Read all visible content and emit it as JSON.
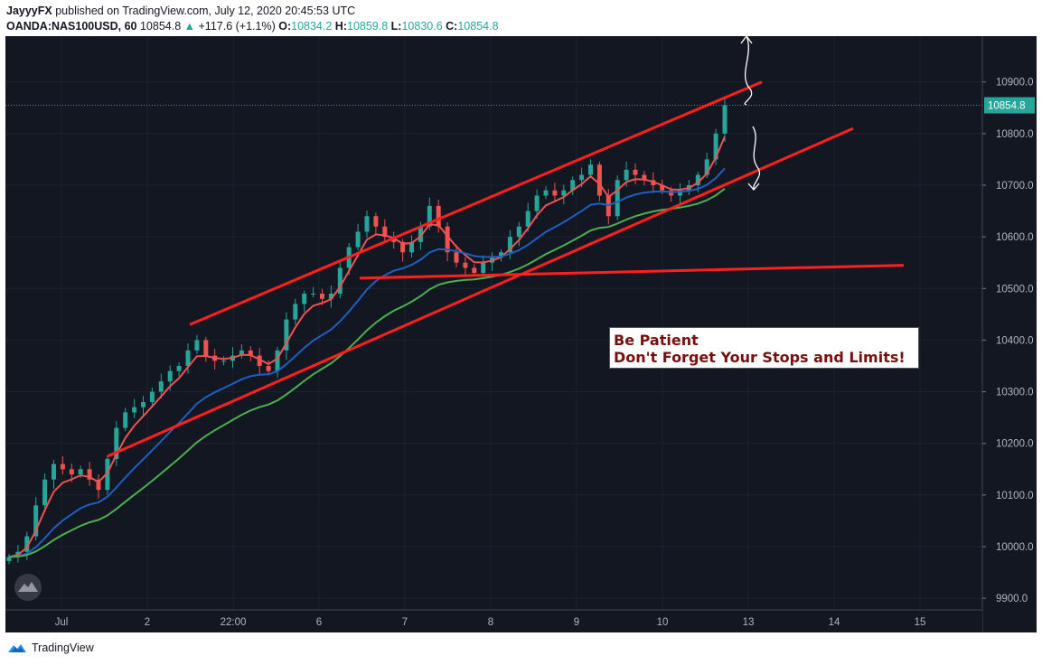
{
  "header": {
    "publisher": "JayyyFX",
    "published_text": " published on TradingView.com, July 12, 2020 20:45:53 UTC",
    "symbol": "OANDA:NAS100USD, 60",
    "last": "10854.8",
    "change_arrow": "▲",
    "change": "+117.6 (+1.1%)",
    "open_label": "O:",
    "open": "10834.2",
    "high_label": "H:",
    "high": "10859.8",
    "low_label": "L:",
    "low": "10830.6",
    "close_label": "C:",
    "close": "10854.8"
  },
  "footer": {
    "brand": "TradingView",
    "icon": "tradingview-logo-icon"
  },
  "annotation": {
    "line1": "Be Patient",
    "line2": "Don't Forget Your Stops and Limits!"
  },
  "colors": {
    "background": "#131722",
    "up_candle": "#26a69a",
    "down_candle": "#ef5350",
    "ma_fast": "#f05252",
    "ma_mid": "#1e5fc2",
    "ma_slow": "#4caf50",
    "trendline": "#ff1f1f",
    "price_badge": "#26a69a"
  },
  "chart_data": {
    "type": "candlestick",
    "symbol": "OANDA:NAS100USD",
    "timeframe": "60",
    "x_tick_labels": [
      "Jul",
      "2",
      "22:00",
      "6",
      "7",
      "8",
      "9",
      "10",
      "13",
      "14",
      "15"
    ],
    "y_tick_labels": [
      "9900.0",
      "10000.0",
      "10100.0",
      "10200.0",
      "10300.0",
      "10400.0",
      "10500.0",
      "10600.0",
      "10700.0",
      "10800.0",
      "10900.0"
    ],
    "ylim": [
      9860,
      10980
    ],
    "last_price": 10854.8,
    "grid": true,
    "close_series_approx": [
      9980,
      9990,
      10020,
      10080,
      10130,
      10160,
      10150,
      10140,
      10150,
      10130,
      10110,
      10170,
      10230,
      10260,
      10270,
      10280,
      10300,
      10320,
      10340,
      10350,
      10380,
      10400,
      10370,
      10360,
      10360,
      10370,
      10380,
      10370,
      10350,
      10340,
      10380,
      10440,
      10470,
      10490,
      10490,
      10480,
      10490,
      10540,
      10580,
      10610,
      10640,
      10620,
      10600,
      10590,
      10570,
      10590,
      10620,
      10660,
      10620,
      10570,
      10550,
      10540,
      10530,
      10550,
      10560,
      10570,
      10600,
      10620,
      10650,
      10680,
      10690,
      10680,
      10690,
      10710,
      10720,
      10740,
      10680,
      10640,
      10710,
      10730,
      10720,
      10710,
      10700,
      10690,
      10680,
      10690,
      10700,
      10720,
      10750,
      10800,
      10855
    ],
    "moving_averages": [
      {
        "color": "red",
        "period_label": ""
      },
      {
        "color": "blue",
        "period_label": ""
      },
      {
        "color": "green",
        "period_label": ""
      }
    ],
    "drawn_lines": [
      "upper channel line",
      "lower channel line",
      "horizontal support line"
    ]
  }
}
